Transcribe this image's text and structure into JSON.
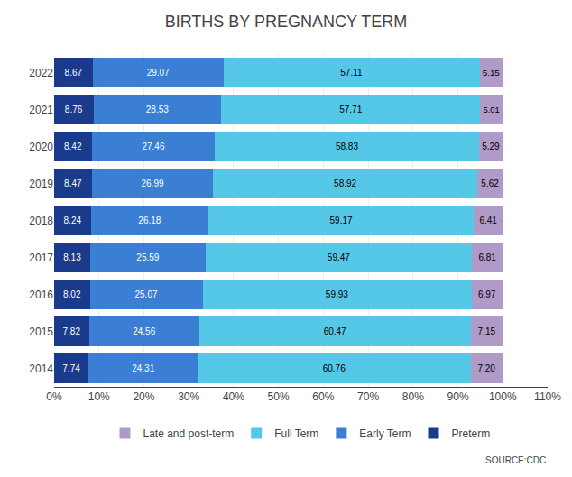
{
  "chart_data": {
    "type": "bar",
    "orientation": "horizontal",
    "stacked": true,
    "title": "BIRTHS BY PREGNANCY TERM",
    "categories": [
      "2022",
      "2021",
      "2020",
      "2019",
      "2018",
      "2017",
      "2016",
      "2015",
      "2014"
    ],
    "series": [
      {
        "name": "Preterm",
        "color": "#1a3a8c",
        "values": [
          8.67,
          8.76,
          8.42,
          8.47,
          8.24,
          8.13,
          8.02,
          7.82,
          7.74
        ],
        "value_labels": [
          "8.67",
          "8.76",
          "8.42",
          "8.47",
          "8.24",
          "8.13",
          "8.02",
          "7.82",
          "7.74"
        ]
      },
      {
        "name": "Early Term",
        "color": "#3a7fd4",
        "values": [
          29.07,
          28.53,
          27.46,
          26.99,
          26.18,
          25.59,
          25.07,
          24.56,
          24.31
        ],
        "value_labels": [
          "29.07",
          "28.53",
          "27.46",
          "26.99",
          "26.18",
          "25.59",
          "25.07",
          "24.56",
          "24.31"
        ]
      },
      {
        "name": "Full Term",
        "color": "#55c8e8",
        "values": [
          57.11,
          57.71,
          58.83,
          58.92,
          59.17,
          59.47,
          59.93,
          60.47,
          60.76
        ],
        "value_labels": [
          "57.11",
          "57.71",
          "58.83",
          "58.92",
          "59.17",
          "59.47",
          "59.93",
          "60.47",
          "60.76"
        ]
      },
      {
        "name": "Late and post-term",
        "color": "#b09ac8",
        "values": [
          5.15,
          5.01,
          5.29,
          5.62,
          6.41,
          6.81,
          6.97,
          7.15,
          7.2
        ],
        "value_labels": [
          "5.15",
          "5.01",
          "5.29",
          "5.62",
          "6.41",
          "6.81",
          "6.97",
          "7.15",
          "7.20"
        ]
      }
    ],
    "xlim": [
      0,
      110
    ],
    "xticks": [
      {
        "value": 0,
        "label": "0%"
      },
      {
        "value": 10,
        "label": "10%"
      },
      {
        "value": 20,
        "label": "20%"
      },
      {
        "value": 30,
        "label": "30%"
      },
      {
        "value": 40,
        "label": "40%"
      },
      {
        "value": 50,
        "label": "50%"
      },
      {
        "value": 60,
        "label": "60%"
      },
      {
        "value": 70,
        "label": "70%"
      },
      {
        "value": 80,
        "label": "80%"
      },
      {
        "value": 90,
        "label": "90%"
      },
      {
        "value": 100,
        "label": "100%"
      },
      {
        "value": 110,
        "label": "110%"
      }
    ],
    "grid": true,
    "legend": "bottom",
    "data_labels": true,
    "annotations": [
      "SOURCE:CDC"
    ]
  }
}
